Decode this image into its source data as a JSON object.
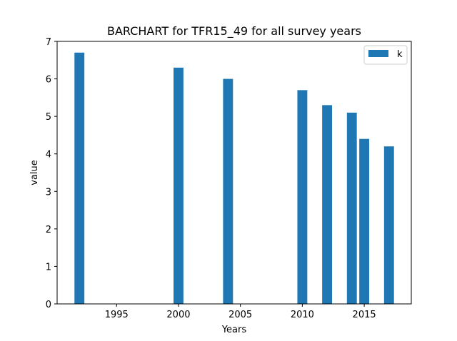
{
  "chart_data": {
    "type": "bar",
    "title": "BARCHART for TFR15_49 for all survey years",
    "xlabel": "Years",
    "ylabel": "value",
    "x": [
      1992,
      2000,
      2004,
      2010,
      2012,
      2014,
      2015,
      2017
    ],
    "series": [
      {
        "name": "k",
        "values": [
          6.7,
          6.3,
          6.0,
          5.7,
          5.3,
          5.1,
          4.4,
          4.2
        ],
        "color": "#1f77b4"
      }
    ],
    "xlim": [
      1990.2,
      2018.8
    ],
    "ylim": [
      0,
      7
    ],
    "xticks": [
      1995,
      2000,
      2005,
      2010,
      2015
    ],
    "yticks": [
      0,
      1,
      2,
      3,
      4,
      5,
      6,
      7
    ],
    "bar_width_years": 0.8,
    "grid": false,
    "legend_position": "top-right"
  }
}
